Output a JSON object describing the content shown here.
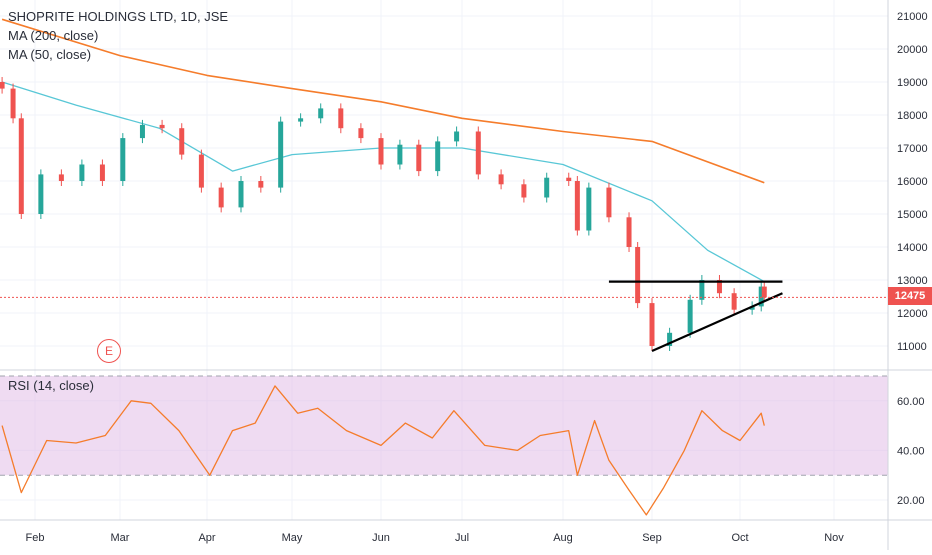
{
  "legend": {
    "symbol": "SHOPRITE HOLDINGS LTD, 1D, JSE",
    "ma200": "MA (200, close)",
    "ma50": "MA (50, close)",
    "rsi": "RSI (14, close)"
  },
  "earnings_badge": "E",
  "last_price_label": "12475",
  "colors": {
    "up": "#26a69a",
    "down": "#ef5350",
    "ma200": "#f57c2b",
    "ma50": "#58c7d6",
    "rsi_line": "#f57c2b",
    "rsi_band": "#e1bee7",
    "trendline": "#000000"
  },
  "chart_data": [
    {
      "type": "line",
      "title": "SHOPRITE HOLDINGS LTD, 1D, JSE",
      "price_axis": {
        "ticks": [
          11000,
          12000,
          13000,
          14000,
          15000,
          16000,
          17000,
          18000,
          19000,
          20000,
          21000
        ]
      },
      "time_axis": {
        "ticks": [
          "Feb",
          "Mar",
          "Apr",
          "May",
          "Jun",
          "Jul",
          "Aug",
          "Sep",
          "Oct",
          "Nov"
        ]
      },
      "last_price": 12475,
      "candles_close_approx": [
        {
          "date": "Jan 20",
          "close": 18800
        },
        {
          "date": "Jan 24",
          "close": 17900
        },
        {
          "date": "Jan 27",
          "close": 15000
        },
        {
          "date": "Feb 03",
          "close": 16200
        },
        {
          "date": "Feb 10",
          "close": 16000
        },
        {
          "date": "Feb 17",
          "close": 16500
        },
        {
          "date": "Feb 24",
          "close": 16000
        },
        {
          "date": "Mar 02",
          "close": 17300
        },
        {
          "date": "Mar 09",
          "close": 17700
        },
        {
          "date": "Mar 16",
          "close": 17600
        },
        {
          "date": "Mar 23",
          "close": 16800
        },
        {
          "date": "Mar 30",
          "close": 15800
        },
        {
          "date": "Apr 06",
          "close": 15200
        },
        {
          "date": "Apr 13",
          "close": 16000
        },
        {
          "date": "Apr 20",
          "close": 15800
        },
        {
          "date": "Apr 27",
          "close": 17800
        },
        {
          "date": "May 04",
          "close": 17900
        },
        {
          "date": "May 11",
          "close": 18200
        },
        {
          "date": "May 18",
          "close": 17600
        },
        {
          "date": "May 25",
          "close": 17300
        },
        {
          "date": "Jun 01",
          "close": 16500
        },
        {
          "date": "Jun 08",
          "close": 17100
        },
        {
          "date": "Jun 15",
          "close": 16300
        },
        {
          "date": "Jun 22",
          "close": 17200
        },
        {
          "date": "Jun 29",
          "close": 17500
        },
        {
          "date": "Jul 06",
          "close": 16200
        },
        {
          "date": "Jul 13",
          "close": 15900
        },
        {
          "date": "Jul 20",
          "close": 15500
        },
        {
          "date": "Jul 27",
          "close": 16100
        },
        {
          "date": "Aug 03",
          "close": 16000
        },
        {
          "date": "Aug 06",
          "close": 14500
        },
        {
          "date": "Aug 10",
          "close": 15800
        },
        {
          "date": "Aug 17",
          "close": 14900
        },
        {
          "date": "Aug 24",
          "close": 14000
        },
        {
          "date": "Aug 27",
          "close": 12300
        },
        {
          "date": "Sep 01",
          "close": 11000
        },
        {
          "date": "Sep 07",
          "close": 11400
        },
        {
          "date": "Sep 14",
          "close": 12400
        },
        {
          "date": "Sep 18",
          "close": 13000
        },
        {
          "date": "Sep 24",
          "close": 12600
        },
        {
          "date": "Sep 29",
          "close": 12100
        },
        {
          "date": "Oct 05",
          "close": 12200
        },
        {
          "date": "Oct 08",
          "close": 12800
        },
        {
          "date": "Oct 09",
          "close": 12475
        }
      ],
      "series": [
        {
          "name": "MA (200, close)",
          "points": [
            {
              "date": "Jan 20",
              "value": 20900
            },
            {
              "date": "Mar 01",
              "value": 19800
            },
            {
              "date": "Apr 01",
              "value": 19200
            },
            {
              "date": "May 01",
              "value": 18800
            },
            {
              "date": "Jun 01",
              "value": 18400
            },
            {
              "date": "Jul 01",
              "value": 17900
            },
            {
              "date": "Aug 01",
              "value": 17500
            },
            {
              "date": "Sep 01",
              "value": 17200
            },
            {
              "date": "Oct 09",
              "value": 15950
            }
          ]
        },
        {
          "name": "MA (50, close)",
          "points": [
            {
              "date": "Jan 20",
              "value": 19000
            },
            {
              "date": "Feb 15",
              "value": 18300
            },
            {
              "date": "Mar 15",
              "value": 17600
            },
            {
              "date": "Apr 10",
              "value": 16300
            },
            {
              "date": "May 01",
              "value": 16800
            },
            {
              "date": "Jun 01",
              "value": 17000
            },
            {
              "date": "Jul 01",
              "value": 17000
            },
            {
              "date": "Aug 01",
              "value": 16500
            },
            {
              "date": "Sep 01",
              "value": 15400
            },
            {
              "date": "Sep 20",
              "value": 13900
            },
            {
              "date": "Oct 09",
              "value": 12950
            }
          ]
        }
      ],
      "annotations": [
        {
          "type": "trendline",
          "from": {
            "date": "Aug 17",
            "value": 12950
          },
          "to": {
            "date": "Oct 15",
            "value": 12950
          }
        },
        {
          "type": "trendline",
          "from": {
            "date": "Sep 01",
            "value": 10850
          },
          "to": {
            "date": "Oct 15",
            "value": 12600
          }
        }
      ]
    },
    {
      "type": "line",
      "title": "RSI (14, close)",
      "y_axis": {
        "ticks": [
          20.0,
          40.0,
          60.0
        ],
        "bands": [
          30,
          70
        ]
      },
      "series": [
        {
          "name": "RSI (14, close)",
          "points": [
            {
              "date": "Jan 20",
              "value": 50
            },
            {
              "date": "Jan 27",
              "value": 23
            },
            {
              "date": "Feb 05",
              "value": 44
            },
            {
              "date": "Feb 15",
              "value": 43
            },
            {
              "date": "Feb 25",
              "value": 46
            },
            {
              "date": "Mar 05",
              "value": 60
            },
            {
              "date": "Mar 12",
              "value": 59
            },
            {
              "date": "Mar 22",
              "value": 48
            },
            {
              "date": "Apr 02",
              "value": 30
            },
            {
              "date": "Apr 10",
              "value": 48
            },
            {
              "date": "Apr 18",
              "value": 51
            },
            {
              "date": "Apr 25",
              "value": 66
            },
            {
              "date": "May 03",
              "value": 55
            },
            {
              "date": "May 10",
              "value": 57
            },
            {
              "date": "May 20",
              "value": 48
            },
            {
              "date": "Jun 01",
              "value": 42
            },
            {
              "date": "Jun 10",
              "value": 51
            },
            {
              "date": "Jun 20",
              "value": 45
            },
            {
              "date": "Jun 28",
              "value": 56
            },
            {
              "date": "Jul 08",
              "value": 42
            },
            {
              "date": "Jul 18",
              "value": 40
            },
            {
              "date": "Jul 25",
              "value": 46
            },
            {
              "date": "Aug 03",
              "value": 48
            },
            {
              "date": "Aug 06",
              "value": 30
            },
            {
              "date": "Aug 12",
              "value": 52
            },
            {
              "date": "Aug 17",
              "value": 36
            },
            {
              "date": "Aug 24",
              "value": 24
            },
            {
              "date": "Aug 30",
              "value": 14
            },
            {
              "date": "Sep 05",
              "value": 25
            },
            {
              "date": "Sep 12",
              "value": 40
            },
            {
              "date": "Sep 18",
              "value": 56
            },
            {
              "date": "Sep 25",
              "value": 48
            },
            {
              "date": "Oct 01",
              "value": 44
            },
            {
              "date": "Oct 08",
              "value": 55
            },
            {
              "date": "Oct 09",
              "value": 50
            }
          ]
        }
      ]
    }
  ]
}
